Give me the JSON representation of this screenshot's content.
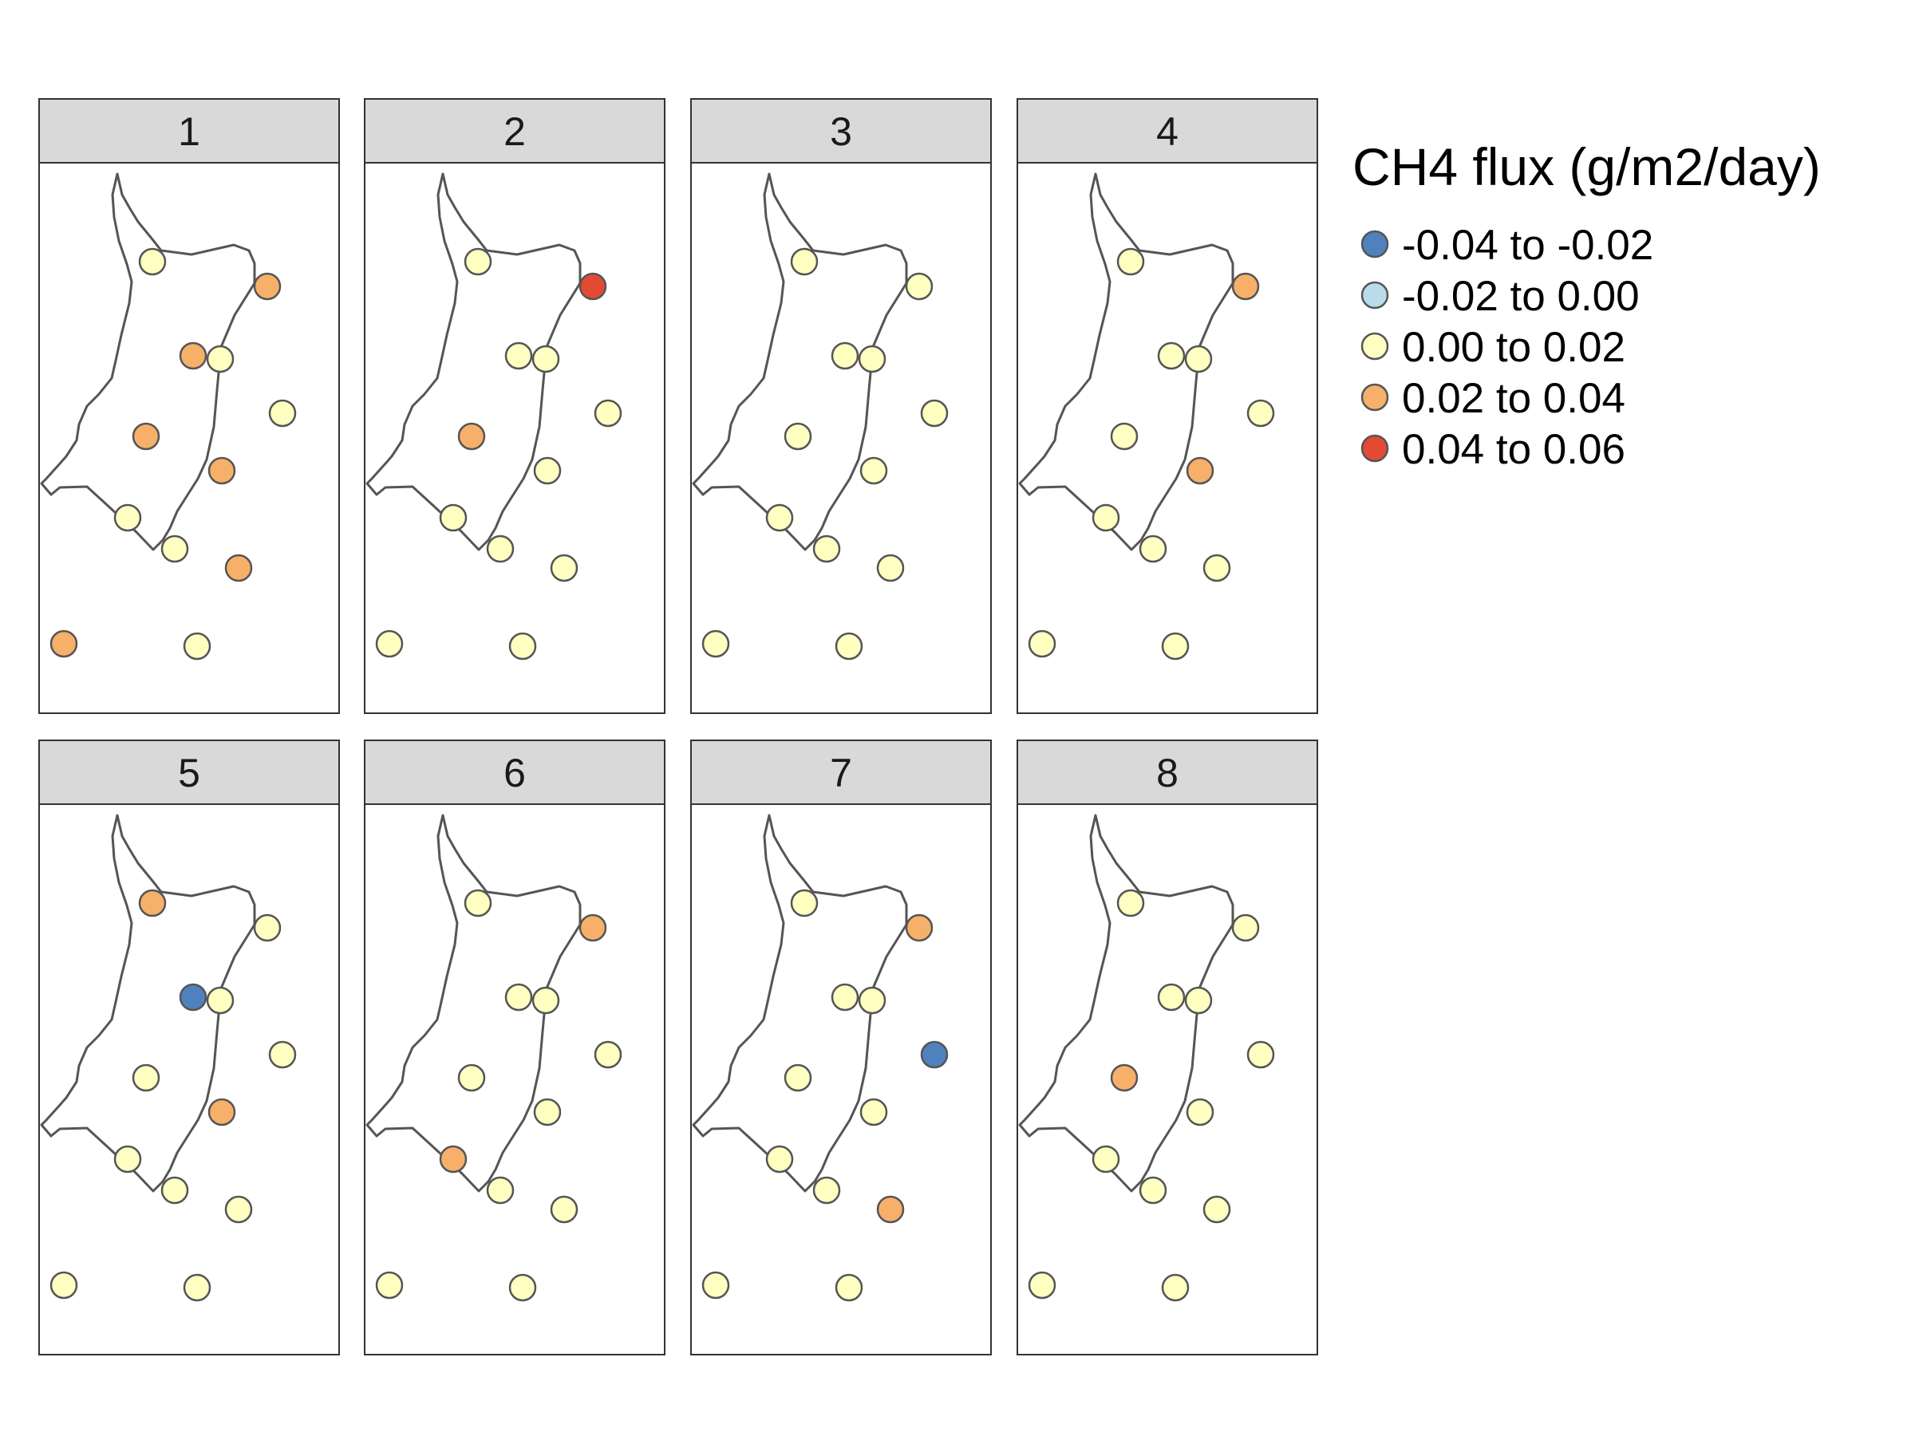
{
  "legend": {
    "title": "CH4 flux (g/m2/day)",
    "classes": [
      {
        "label": "-0.04 to -0.02",
        "color": "#4f81bd"
      },
      {
        "label": "-0.02 to 0.00",
        "color": "#b8dcea"
      },
      {
        "label": "0.00 to 0.02",
        "color": "#ffffc2"
      },
      {
        "label": "0.02 to 0.04",
        "color": "#f7b06a"
      },
      {
        "label": "0.04 to 0.06",
        "color": "#e34a33"
      }
    ]
  },
  "panels": [
    {
      "label": "1",
      "site_classes": [
        2,
        3,
        3,
        2,
        2,
        3,
        3,
        2,
        2,
        3,
        3,
        2,
        3
      ]
    },
    {
      "label": "2",
      "site_classes": [
        2,
        4,
        2,
        2,
        2,
        3,
        2,
        2,
        2,
        2,
        2,
        2,
        2
      ]
    },
    {
      "label": "3",
      "site_classes": [
        2,
        2,
        2,
        2,
        2,
        2,
        2,
        2,
        2,
        2,
        2,
        2,
        2
      ]
    },
    {
      "label": "4",
      "site_classes": [
        2,
        3,
        2,
        2,
        2,
        2,
        3,
        2,
        2,
        2,
        2,
        2,
        2
      ]
    },
    {
      "label": "5",
      "site_classes": [
        3,
        2,
        0,
        2,
        2,
        2,
        3,
        2,
        2,
        2,
        2,
        2,
        2
      ]
    },
    {
      "label": "6",
      "site_classes": [
        2,
        3,
        2,
        2,
        2,
        2,
        2,
        3,
        2,
        2,
        2,
        2,
        2
      ]
    },
    {
      "label": "7",
      "site_classes": [
        2,
        3,
        2,
        2,
        0,
        2,
        2,
        2,
        2,
        3,
        2,
        2,
        2
      ]
    },
    {
      "label": "8",
      "site_classes": [
        2,
        2,
        2,
        2,
        2,
        3,
        2,
        2,
        2,
        2,
        2,
        2,
        2
      ]
    }
  ]
}
